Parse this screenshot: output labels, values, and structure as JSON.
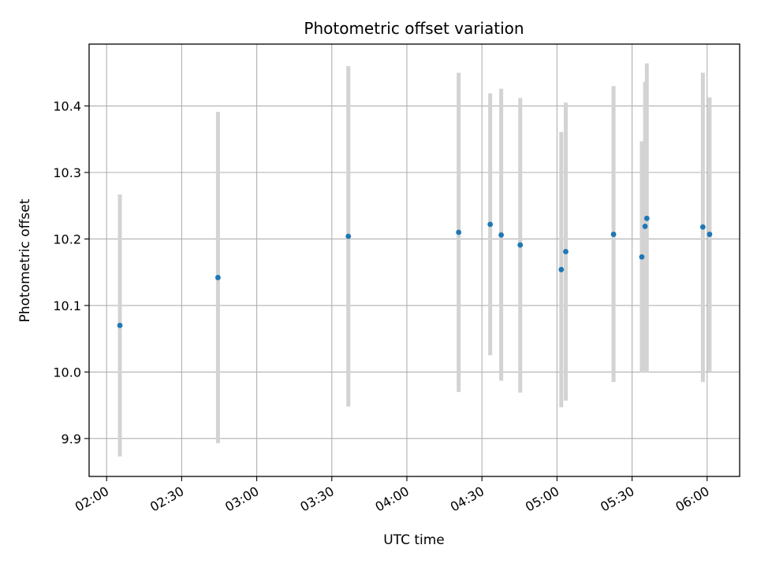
{
  "chart_data": {
    "type": "scatter",
    "title": "Photometric offset variation",
    "xlabel": "UTC time",
    "ylabel": "Photometric offset",
    "xlim": [
      "01:53",
      "06:13"
    ],
    "ylim": [
      9.843,
      10.493
    ],
    "grid": true,
    "x_ticks": [
      "02:00",
      "02:30",
      "03:00",
      "03:30",
      "04:00",
      "04:30",
      "05:00",
      "05:30",
      "06:00"
    ],
    "y_ticks": [
      9.9,
      10.0,
      10.1,
      10.2,
      10.3,
      10.4
    ],
    "y_tick_labels": [
      "9.9",
      "10.0",
      "10.1",
      "10.2",
      "10.3",
      "10.4"
    ],
    "errorbar_color": "#d3d3d3",
    "marker_color": "#1f77b4",
    "points": [
      {
        "t": "02:05:18",
        "y": 10.07,
        "ylo": 9.873,
        "yhi": 10.267
      },
      {
        "t": "02:44:30",
        "y": 10.142,
        "ylo": 9.893,
        "yhi": 10.391
      },
      {
        "t": "03:36:36",
        "y": 10.204,
        "ylo": 9.948,
        "yhi": 10.46
      },
      {
        "t": "04:20:42",
        "y": 10.21,
        "ylo": 9.97,
        "yhi": 10.45
      },
      {
        "t": "04:33:18",
        "y": 10.222,
        "ylo": 10.025,
        "yhi": 10.419
      },
      {
        "t": "04:37:42",
        "y": 10.206,
        "ylo": 9.987,
        "yhi": 10.426
      },
      {
        "t": "04:45:18",
        "y": 10.191,
        "ylo": 9.969,
        "yhi": 10.412
      },
      {
        "t": "05:01:42",
        "y": 10.154,
        "ylo": 9.947,
        "yhi": 10.361
      },
      {
        "t": "05:03:30",
        "y": 10.181,
        "ylo": 9.957,
        "yhi": 10.405
      },
      {
        "t": "05:22:36",
        "y": 10.207,
        "ylo": 9.985,
        "yhi": 10.43
      },
      {
        "t": "05:33:54",
        "y": 10.173,
        "ylo": 9.999,
        "yhi": 10.347
      },
      {
        "t": "05:35:12",
        "y": 10.219,
        "ylo": 10.002,
        "yhi": 10.436
      },
      {
        "t": "05:35:54",
        "y": 10.231,
        "ylo": 9.999,
        "yhi": 10.464
      },
      {
        "t": "05:58:18",
        "y": 10.218,
        "ylo": 9.985,
        "yhi": 10.45
      },
      {
        "t": "06:01:00",
        "y": 10.207,
        "ylo": 10.001,
        "yhi": 10.413
      }
    ]
  }
}
